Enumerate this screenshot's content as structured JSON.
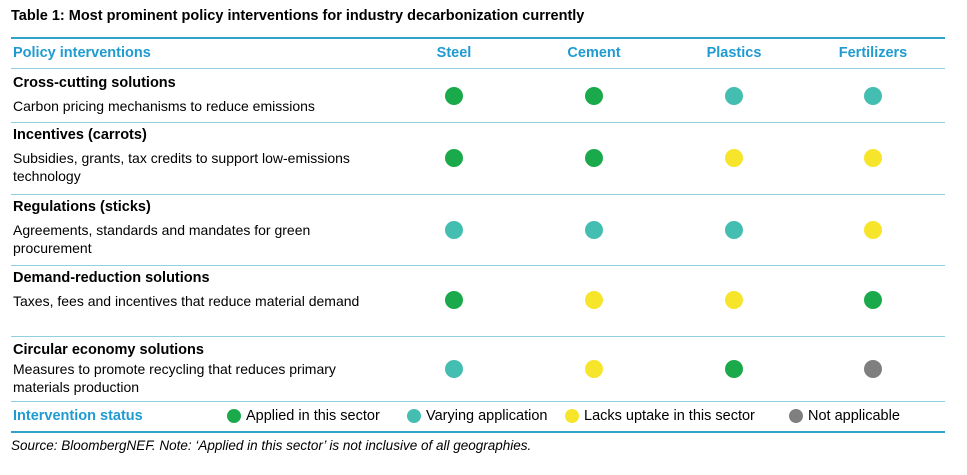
{
  "title": "Table 1: Most prominent policy interventions for industry decarbonization currently",
  "header": {
    "interventions": "Policy interventions",
    "columns": [
      "Steel",
      "Cement",
      "Plastics",
      "Fertilizers"
    ]
  },
  "rows": [
    {
      "section": "Cross-cutting solutions",
      "description": "Carbon pricing mechanisms to reduce emissions",
      "status": [
        "applied",
        "applied",
        "varying",
        "varying"
      ]
    },
    {
      "section": "Incentives (carrots)",
      "description": "Subsidies, grants, tax credits to support low-emissions technology",
      "status": [
        "applied",
        "applied",
        "lacks",
        "lacks"
      ]
    },
    {
      "section": "Regulations (sticks)",
      "description": "Agreements, standards and mandates for green procurement",
      "status": [
        "varying",
        "varying",
        "varying",
        "lacks"
      ]
    },
    {
      "section": "Demand-reduction solutions",
      "description": "Taxes, fees and incentives that reduce material demand",
      "status": [
        "applied",
        "lacks",
        "lacks",
        "applied"
      ]
    },
    {
      "section": "Circular economy solutions",
      "description": "Measures to promote recycling that reduces primary materials production",
      "status": [
        "varying",
        "lacks",
        "applied",
        "na"
      ]
    }
  ],
  "legend": {
    "title": "Intervention status",
    "items": [
      {
        "key": "applied",
        "label": "Applied in this sector"
      },
      {
        "key": "varying",
        "label": "Varying application"
      },
      {
        "key": "lacks",
        "label": "Lacks uptake in this sector"
      },
      {
        "key": "na",
        "label": "Not applicable"
      }
    ]
  },
  "status_colors": {
    "applied": "#1aaa4b",
    "varying": "#45beb2",
    "lacks": "#f7e52c",
    "na": "#7f7f7f"
  },
  "source": "Source: BloombergNEF. Note: ‘Applied in this sector’ is not inclusive of all geographies."
}
